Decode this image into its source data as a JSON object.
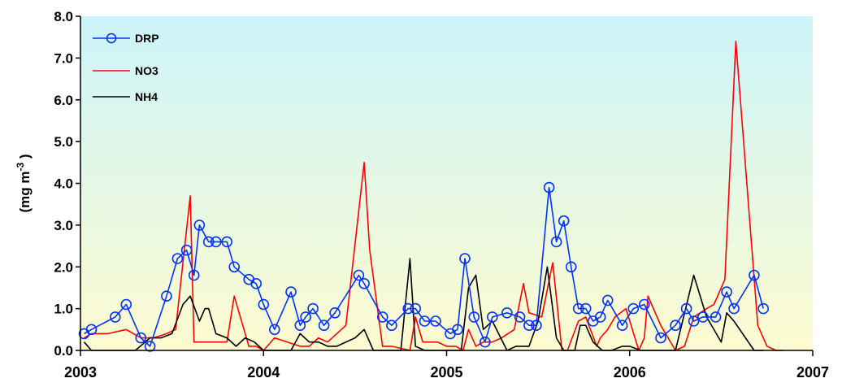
{
  "chart_data": {
    "type": "line",
    "title": "",
    "xlabel": "",
    "ylabel": "(mg m-3 )",
    "ylabel_parts": {
      "base": "(mg m",
      "sup": "-3",
      "close": " )"
    },
    "xlim": [
      2003.0,
      2007.0
    ],
    "ylim": [
      0.0,
      8.0
    ],
    "x_ticks": [
      2003,
      2004,
      2005,
      2006,
      2007
    ],
    "x_tick_labels": [
      "2003",
      "2004",
      "2005",
      "2006",
      "2007"
    ],
    "y_ticks": [
      0.0,
      1.0,
      2.0,
      3.0,
      4.0,
      5.0,
      6.0,
      7.0,
      8.0
    ],
    "y_tick_labels": [
      "0.0",
      "1.0",
      "2.0",
      "3.0",
      "4.0",
      "5.0",
      "6.0",
      "7.0",
      "8.0"
    ],
    "grid": false,
    "legend_position": "top-left",
    "background": {
      "top_color": "#ccf4fa",
      "bottom_color": "#fdfbd0"
    },
    "series": [
      {
        "name": "DRP",
        "color": "#0033ff",
        "marker": "circle",
        "x": [
          2003.02,
          2003.06,
          2003.19,
          2003.25,
          2003.33,
          2003.38,
          2003.47,
          2003.53,
          2003.58,
          2003.62,
          2003.65,
          2003.7,
          2003.74,
          2003.8,
          2003.84,
          2003.92,
          2003.96,
          2004.0,
          2004.06,
          2004.15,
          2004.2,
          2004.23,
          2004.27,
          2004.33,
          2004.39,
          2004.52,
          2004.55,
          2004.65,
          2004.7,
          2004.79,
          2004.83,
          2004.88,
          2004.94,
          2005.02,
          2005.06,
          2005.1,
          2005.15,
          2005.21,
          2005.25,
          2005.33,
          2005.4,
          2005.45,
          2005.49,
          2005.56,
          2005.6,
          2005.64,
          2005.68,
          2005.72,
          2005.76,
          2005.8,
          2005.84,
          2005.88,
          2005.96,
          2006.02,
          2006.08,
          2006.17,
          2006.25,
          2006.31,
          2006.35,
          2006.4,
          2006.47,
          2006.53,
          2006.57,
          2006.68,
          2006.73
        ],
        "values": [
          0.4,
          0.5,
          0.8,
          1.1,
          0.3,
          0.1,
          1.3,
          2.2,
          2.4,
          1.8,
          3.0,
          2.6,
          2.6,
          2.6,
          2.0,
          1.7,
          1.6,
          1.1,
          0.5,
          1.4,
          0.6,
          0.8,
          1.0,
          0.6,
          0.9,
          1.8,
          1.6,
          0.8,
          0.6,
          1.0,
          1.0,
          0.7,
          0.7,
          0.4,
          0.5,
          2.2,
          0.8,
          0.2,
          0.8,
          0.9,
          0.8,
          0.6,
          0.6,
          3.9,
          2.6,
          3.1,
          2.0,
          1.0,
          1.0,
          0.7,
          0.8,
          1.2,
          0.6,
          1.0,
          1.1,
          0.3,
          0.6,
          1.0,
          0.7,
          0.8,
          0.8,
          1.4,
          1.0,
          1.8,
          1.0
        ]
      },
      {
        "name": "NO3",
        "color": "#ff0000",
        "marker": "none",
        "x": [
          2003.02,
          2003.06,
          2003.15,
          2003.25,
          2003.33,
          2003.4,
          2003.47,
          2003.52,
          2003.6,
          2003.62,
          2003.66,
          2003.8,
          2003.84,
          2003.92,
          2003.96,
          2004.0,
          2004.06,
          2004.2,
          2004.25,
          2004.3,
          2004.35,
          2004.45,
          2004.55,
          2004.58,
          2004.65,
          2004.7,
          2004.8,
          2004.83,
          2004.87,
          2004.95,
          2005.0,
          2005.05,
          2005.09,
          2005.12,
          2005.16,
          2005.2,
          2005.25,
          2005.3,
          2005.37,
          2005.42,
          2005.45,
          2005.52,
          2005.58,
          2005.63,
          2005.66,
          2005.72,
          2005.76,
          2005.82,
          2005.84,
          2005.88,
          2005.92,
          2005.98,
          2006.05,
          2006.08,
          2006.1,
          2006.17,
          2006.25,
          2006.3,
          2006.35,
          2006.42,
          2006.46,
          2006.52,
          2006.58,
          2006.7,
          2006.75,
          2006.8,
          2006.84
        ],
        "values": [
          0.3,
          0.4,
          0.4,
          0.5,
          0.3,
          0.3,
          0.4,
          0.5,
          3.7,
          0.2,
          0.2,
          0.2,
          1.3,
          0.1,
          0.1,
          0.0,
          0.3,
          0.1,
          0.1,
          0.3,
          0.2,
          0.6,
          4.5,
          2.4,
          0.1,
          0.1,
          0.0,
          0.8,
          0.2,
          0.2,
          0.1,
          0.1,
          0.0,
          0.5,
          0.1,
          0.2,
          0.2,
          0.3,
          0.5,
          1.6,
          0.9,
          0.8,
          2.1,
          0.0,
          0.0,
          0.7,
          0.8,
          0.1,
          0.3,
          0.5,
          0.8,
          1.0,
          0.0,
          0.3,
          1.3,
          0.6,
          0.0,
          0.1,
          0.8,
          1.0,
          1.1,
          1.7,
          7.4,
          0.6,
          0.1,
          0.0,
          0.0
        ]
      },
      {
        "name": "NH4",
        "color": "#000000",
        "marker": "none",
        "x": [
          2003.02,
          2003.06,
          2003.1,
          2003.2,
          2003.3,
          2003.38,
          2003.44,
          2003.5,
          2003.56,
          2003.6,
          2003.65,
          2003.68,
          2003.7,
          2003.74,
          2003.8,
          2003.85,
          2003.9,
          2003.95,
          2004.0,
          2004.06,
          2004.15,
          2004.2,
          2004.25,
          2004.3,
          2004.35,
          2004.4,
          2004.5,
          2004.55,
          2004.6,
          2004.68,
          2004.75,
          2004.8,
          2004.83,
          2004.88,
          2004.95,
          2005.0,
          2005.08,
          2005.12,
          2005.16,
          2005.2,
          2005.25,
          2005.33,
          2005.38,
          2005.45,
          2005.5,
          2005.55,
          2005.6,
          2005.64,
          2005.7,
          2005.73,
          2005.76,
          2005.8,
          2005.85,
          2005.9,
          2005.96,
          2006.0,
          2006.06,
          2006.1,
          2006.17,
          2006.25,
          2006.35,
          2006.42,
          2006.5,
          2006.53,
          2006.57,
          2006.68,
          2006.73
        ],
        "values": [
          0.2,
          0.0,
          0.0,
          0.0,
          0.0,
          0.3,
          0.3,
          0.4,
          1.1,
          1.3,
          0.7,
          1.0,
          1.0,
          0.4,
          0.3,
          0.1,
          0.3,
          0.2,
          0.0,
          0.0,
          0.0,
          0.4,
          0.2,
          0.2,
          0.1,
          0.1,
          0.3,
          0.5,
          0.0,
          0.0,
          0.0,
          2.2,
          0.1,
          0.0,
          0.0,
          0.0,
          0.0,
          1.5,
          1.8,
          0.5,
          0.7,
          0.0,
          0.1,
          0.1,
          0.7,
          2.0,
          0.3,
          0.0,
          0.0,
          0.6,
          0.6,
          0.2,
          0.0,
          0.0,
          0.1,
          0.1,
          0.0,
          0.0,
          0.0,
          0.0,
          1.8,
          0.8,
          0.2,
          0.9,
          0.7,
          0.0,
          0.0
        ]
      }
    ]
  }
}
